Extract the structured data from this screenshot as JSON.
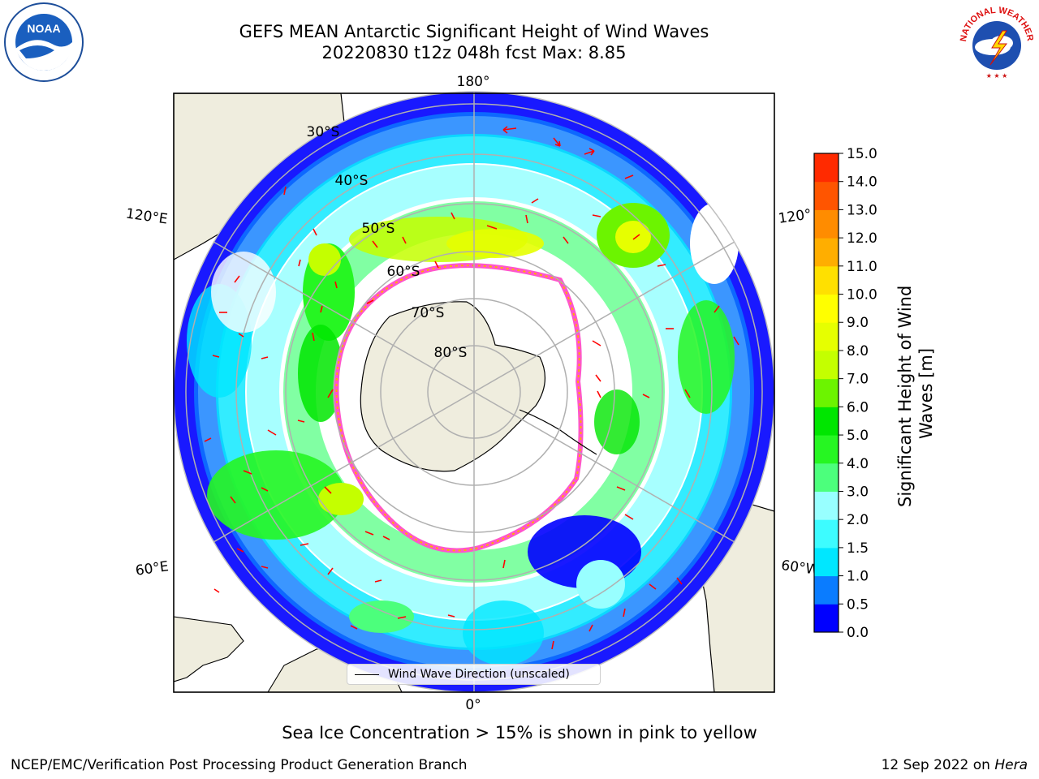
{
  "header": {
    "title_line1": "GEFS MEAN Antarctic Significant Height of Wind Waves",
    "title_line2": "20220830 t12z 048h fcst   Max: 8.85"
  },
  "logos": {
    "left": {
      "icon": "noaa-logo",
      "text": "NOAA"
    },
    "right": {
      "icon": "nws-logo",
      "text": "NATIONAL WEATHER SERVICE"
    }
  },
  "map": {
    "projection": "south-polar-stereographic",
    "lon_labels": {
      "top": "180°",
      "bottom": "0°",
      "left_upper": "120°E",
      "left_lower": "60°E",
      "right_upper": "120°",
      "right_lower": "60°W"
    },
    "lat_labels": [
      "30°S",
      "40°S",
      "50°S",
      "60°S",
      "70°S",
      "80°S"
    ],
    "legend_text": "Wind Wave Direction (unscaled)",
    "colors": {
      "land": "#efedde",
      "sea_ice": "#ff55cc",
      "grid": "#b0b0b0"
    }
  },
  "colorbar": {
    "label": "Significant Height of Wind Waves [m]",
    "label_line1": "Significant Height of Wind",
    "label_line2": "Waves [m]",
    "ticks": [
      "0.0",
      "0.5",
      "1.0",
      "1.5",
      "2.0",
      "3.0",
      "4.0",
      "5.0",
      "6.0",
      "7.0",
      "8.0",
      "9.0",
      "10.0",
      "11.0",
      "12.0",
      "13.0",
      "14.0",
      "15.0"
    ],
    "colors": [
      "#0000ff",
      "#0a7cff",
      "#00e7ff",
      "#3dfcff",
      "#98ffff",
      "#4cff7c",
      "#26f622",
      "#00e600",
      "#6cf400",
      "#c4ff00",
      "#e6ff00",
      "#ffff00",
      "#ffe000",
      "#ffae00",
      "#ff8c00",
      "#ff5500",
      "#ff2a00",
      "#ff0000"
    ]
  },
  "chart_data": {
    "type": "heatmap",
    "title": "GEFS MEAN Antarctic Significant Height of Wind Waves",
    "subtitle": "20220830 t12z 048h fcst   Max: 8.85",
    "max": 8.85,
    "colorbar_label": "Significant Height of Wind Waves [m]",
    "levels": [
      0.0,
      0.5,
      1.0,
      1.5,
      2.0,
      3.0,
      4.0,
      5.0,
      6.0,
      7.0,
      8.0,
      9.0,
      10.0,
      11.0,
      12.0,
      13.0,
      14.0,
      15.0
    ],
    "legend": "Wind Wave Direction (unscaled)",
    "grid": true
  },
  "footer": {
    "sea_ice_note": "Sea Ice Concentration > 15% is shown in pink to yellow",
    "left_credit": "NCEP/EMC/Verification Post Processing Product Generation Branch",
    "date": "12 Sep 2022 on",
    "machine": "Hera"
  }
}
